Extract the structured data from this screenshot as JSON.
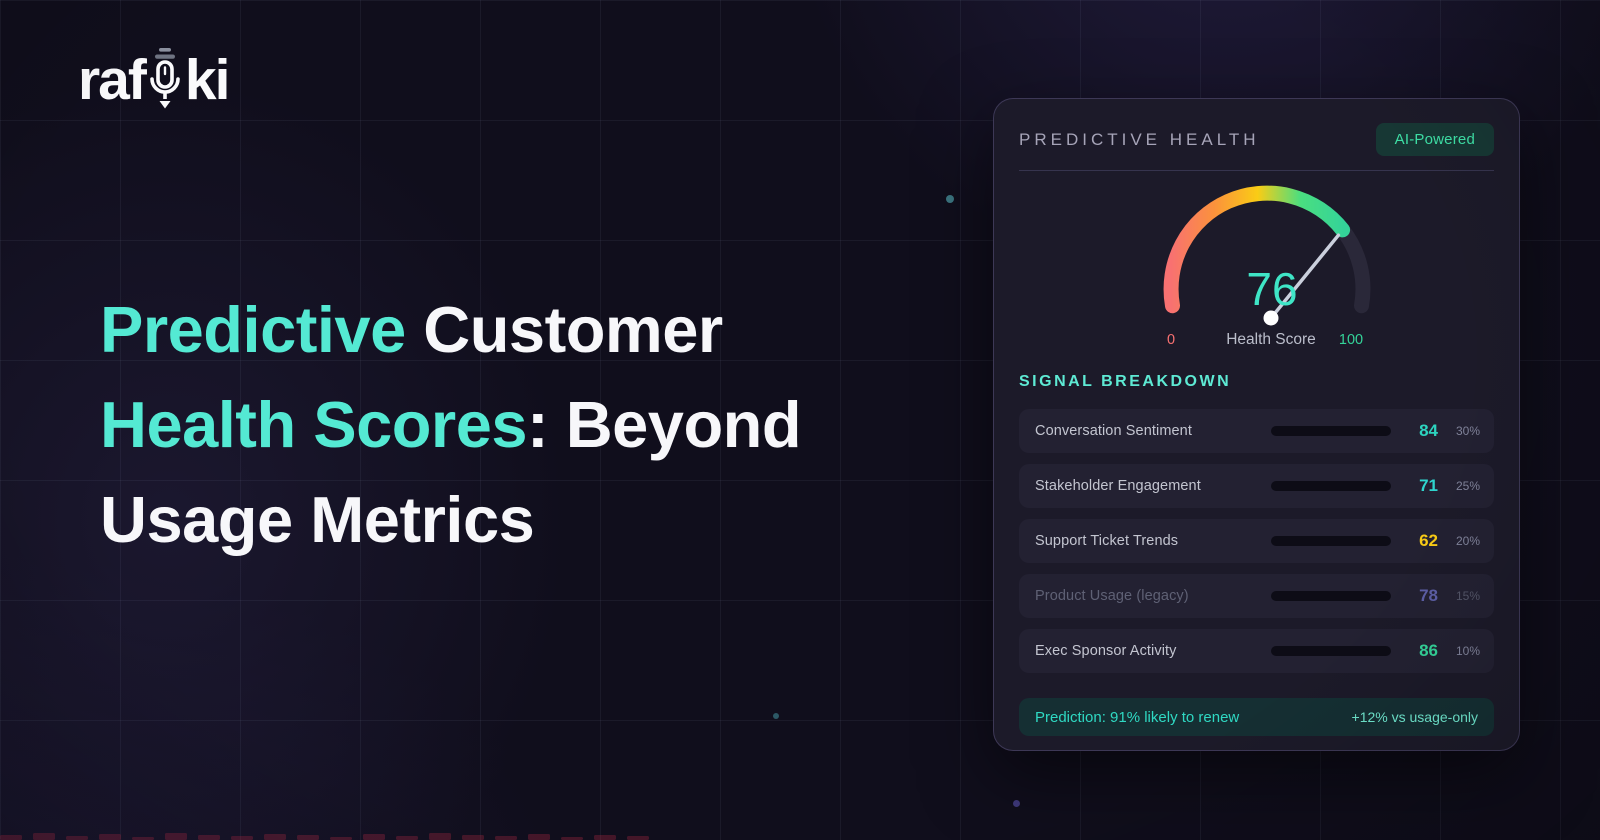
{
  "brand": {
    "logo_pre": "raf",
    "logo_post": "ki",
    "mic_icon": "microphone-icon"
  },
  "headline": {
    "accent_color": "#54E9D3",
    "lines": [
      {
        "accent": "Predictive ",
        "rest": "Customer"
      },
      {
        "accent": "Health Scores",
        "rest": ": Beyond"
      },
      {
        "accent": "",
        "rest": "Usage Metrics"
      }
    ]
  },
  "card": {
    "title": "PREDICTIVE HEALTH",
    "badge": "AI-Powered",
    "gauge": {
      "score": 76,
      "max": 100,
      "min_label": "0",
      "max_label": "100",
      "caption": "Health Score",
      "score_color": "#3FE5C6",
      "min_label_color": "#F87171",
      "max_label_color": "#34D399",
      "caption_color": "#BBBECB",
      "arc_colors": [
        "#F87171",
        "#FB923C",
        "#FACC15",
        "#4ADE80",
        "#34D399"
      ],
      "arc_rest_color": "#2A2839"
    },
    "signals_title": "SIGNAL BREAKDOWN",
    "signals": [
      {
        "label": "Conversation Sentiment",
        "value": 84,
        "weight": "30%",
        "bar_start": "#2DD4BF",
        "bar_end": "#4FE3A9",
        "value_color": "#2DD4BF",
        "dimmed": false
      },
      {
        "label": "Stakeholder Engagement",
        "value": 71,
        "weight": "25%",
        "bar_start": "#5B5BF6",
        "bar_end": "#38D5E8",
        "value_color": "#2FD5CE",
        "dimmed": false
      },
      {
        "label": "Support Ticket Trends",
        "value": 62,
        "weight": "20%",
        "bar_start": "#EFBE12",
        "bar_end": "#FCD34D",
        "value_color": "#FACC15",
        "dimmed": false
      },
      {
        "label": "Product Usage (legacy)",
        "value": 78,
        "weight": "15%",
        "bar_start": "#3E3C72",
        "bar_end": "#454382",
        "value_color": "#5D5FA6",
        "dimmed": true
      },
      {
        "label": "Exec Sponsor Activity",
        "value": 86,
        "weight": "10%",
        "bar_start": "#6EE7D0",
        "bar_end": "#36DF96",
        "value_color": "#34D399",
        "dimmed": false
      }
    ],
    "footer": {
      "left": "Prediction: 91% likely to renew",
      "right": "+12% vs usage-only"
    }
  },
  "chart_data": [
    {
      "type": "gauge",
      "title": "Health Score",
      "value": 76,
      "range": [
        0,
        100
      ],
      "tick_labels": [
        "0",
        "100"
      ],
      "colors": [
        "#F87171",
        "#FB923C",
        "#FACC15",
        "#4ADE80",
        "#34D399"
      ]
    },
    {
      "type": "bar",
      "title": "SIGNAL BREAKDOWN",
      "categories": [
        "Conversation Sentiment",
        "Stakeholder Engagement",
        "Support Ticket Trends",
        "Product Usage (legacy)",
        "Exec Sponsor Activity"
      ],
      "series": [
        {
          "name": "score",
          "values": [
            84,
            71,
            62,
            78,
            86
          ]
        },
        {
          "name": "weight",
          "values": [
            "30%",
            "25%",
            "20%",
            "15%",
            "10%"
          ]
        }
      ],
      "xlim": [
        0,
        100
      ],
      "annotation": "Prediction: 91% likely to renew (+12% vs usage-only)"
    }
  ]
}
